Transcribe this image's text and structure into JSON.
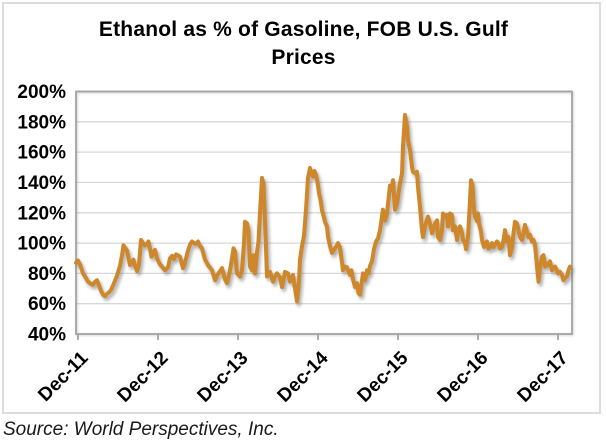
{
  "colors": {
    "line": "#CE872B",
    "grid": "#D8D8D8",
    "axis": "#A3A3A3",
    "text": "#000000",
    "card_border": "#DCDCDC",
    "background": "#FFFFFF"
  },
  "footer": {
    "source": "Source: World Perspectives, Inc."
  },
  "chart_data": {
    "type": "line",
    "title": "Ethanol as % of Gasoline, FOB U.S. Gulf Prices",
    "title_lines": [
      "Ethanol as % of Gasoline, FOB U.S. Gulf",
      "Prices"
    ],
    "xlabel": "",
    "ylabel": "",
    "y_unit": "%",
    "ylim": [
      40,
      200
    ],
    "y_step": 20,
    "y_tick_labels": [
      "200%",
      "180%",
      "160%",
      "140%",
      "120%",
      "100%",
      "80%",
      "60%",
      "40%"
    ],
    "x_tick_labels": [
      "Dec-11",
      "Dec-12",
      "Dec-13",
      "Dec-14",
      "Dec-15",
      "Dec-16",
      "Dec-17"
    ],
    "x_unit": "years since Dec-2011",
    "x_range": [
      -0.025,
      6.15
    ],
    "grid": "horizontal",
    "legend": "none",
    "series": [
      {
        "name": "Ethanol as % of Gasoline",
        "color": "#CE872B",
        "points": [
          [
            -0.025,
            87
          ],
          [
            0,
            88.5
          ],
          [
            0.025,
            86
          ],
          [
            0.063,
            80
          ],
          [
            0.088,
            78
          ],
          [
            0.125,
            74.5
          ],
          [
            0.15,
            73.5
          ],
          [
            0.188,
            72.5
          ],
          [
            0.213,
            74.5
          ],
          [
            0.238,
            75.5
          ],
          [
            0.263,
            72
          ],
          [
            0.288,
            68.5
          ],
          [
            0.313,
            66
          ],
          [
            0.338,
            65
          ],
          [
            0.363,
            66.5
          ],
          [
            0.388,
            67.5
          ],
          [
            0.413,
            69
          ],
          [
            0.45,
            73.5
          ],
          [
            0.488,
            78.5
          ],
          [
            0.525,
            85
          ],
          [
            0.55,
            92
          ],
          [
            0.569,
            98.5
          ],
          [
            0.588,
            97
          ],
          [
            0.613,
            95
          ],
          [
            0.638,
            88.5
          ],
          [
            0.65,
            85.5
          ],
          [
            0.675,
            87.5
          ],
          [
            0.694,
            89
          ],
          [
            0.713,
            85
          ],
          [
            0.738,
            81.5
          ],
          [
            0.763,
            86
          ],
          [
            0.788,
            102
          ],
          [
            0.813,
            100
          ],
          [
            0.838,
            98.5
          ],
          [
            0.863,
            99.5
          ],
          [
            0.881,
            101
          ],
          [
            0.9,
            96
          ],
          [
            0.919,
            91
          ],
          [
            0.938,
            93.5
          ],
          [
            0.963,
            95.5
          ],
          [
            0.988,
            90
          ],
          [
            1.0,
            88.5
          ],
          [
            1.025,
            86
          ],
          [
            1.05,
            84.5
          ],
          [
            1.088,
            82
          ],
          [
            1.125,
            84
          ],
          [
            1.15,
            90
          ],
          [
            1.175,
            91.5
          ],
          [
            1.2,
            89.5
          ],
          [
            1.225,
            92.5
          ],
          [
            1.25,
            92
          ],
          [
            1.275,
            91
          ],
          [
            1.313,
            83.5
          ],
          [
            1.338,
            87
          ],
          [
            1.375,
            95
          ],
          [
            1.4,
            99
          ],
          [
            1.425,
            101
          ],
          [
            1.45,
            100
          ],
          [
            1.475,
            99.5
          ],
          [
            1.5,
            101
          ],
          [
            1.525,
            98
          ],
          [
            1.55,
            96.5
          ],
          [
            1.588,
            89
          ],
          [
            1.625,
            85.5
          ],
          [
            1.675,
            82
          ],
          [
            1.713,
            75.5
          ],
          [
            1.738,
            78.5
          ],
          [
            1.763,
            80.5
          ],
          [
            1.775,
            81.5
          ],
          [
            1.8,
            83.5
          ],
          [
            1.838,
            76
          ],
          [
            1.863,
            73.5
          ],
          [
            1.888,
            79
          ],
          [
            1.9,
            82
          ],
          [
            1.925,
            90
          ],
          [
            1.944,
            96.5
          ],
          [
            1.963,
            94.5
          ],
          [
            1.988,
            80
          ],
          [
            2.025,
            78
          ],
          [
            2.05,
            82
          ],
          [
            2.075,
            100
          ],
          [
            2.088,
            114
          ],
          [
            2.113,
            113
          ],
          [
            2.131,
            107.5
          ],
          [
            2.15,
            84.5
          ],
          [
            2.175,
            82
          ],
          [
            2.194,
            92
          ],
          [
            2.213,
            80
          ],
          [
            2.238,
            94
          ],
          [
            2.256,
            101
          ],
          [
            2.275,
            120
          ],
          [
            2.3,
            143
          ],
          [
            2.319,
            139
          ],
          [
            2.338,
            115
          ],
          [
            2.363,
            78
          ],
          [
            2.4,
            81
          ],
          [
            2.438,
            74.5
          ],
          [
            2.463,
            78
          ],
          [
            2.488,
            80
          ],
          [
            2.525,
            77.5
          ],
          [
            2.55,
            71
          ],
          [
            2.588,
            81
          ],
          [
            2.625,
            80
          ],
          [
            2.65,
            74.5
          ],
          [
            2.688,
            79
          ],
          [
            2.713,
            70
          ],
          [
            2.738,
            61.5
          ],
          [
            2.763,
            75
          ],
          [
            2.775,
            89
          ],
          [
            2.8,
            98
          ],
          [
            2.825,
            105
          ],
          [
            2.85,
            122
          ],
          [
            2.875,
            143
          ],
          [
            2.9,
            149.5
          ],
          [
            2.919,
            146
          ],
          [
            2.938,
            144
          ],
          [
            2.956,
            147.5
          ],
          [
            2.975,
            145
          ],
          [
            2.994,
            140
          ],
          [
            3.013,
            133
          ],
          [
            3.031,
            128.5
          ],
          [
            3.05,
            121.5
          ],
          [
            3.063,
            119.5
          ],
          [
            3.088,
            114
          ],
          [
            3.113,
            111
          ],
          [
            3.125,
            104
          ],
          [
            3.15,
            98
          ],
          [
            3.175,
            93.5
          ],
          [
            3.2,
            95.5
          ],
          [
            3.225,
            97.5
          ],
          [
            3.25,
            100
          ],
          [
            3.275,
            97
          ],
          [
            3.313,
            82
          ],
          [
            3.338,
            84.5
          ],
          [
            3.363,
            84
          ],
          [
            3.4,
            79
          ],
          [
            3.419,
            82
          ],
          [
            3.438,
            76
          ],
          [
            3.463,
            71
          ],
          [
            3.488,
            73.5
          ],
          [
            3.506,
            67
          ],
          [
            3.525,
            66
          ],
          [
            3.544,
            73.5
          ],
          [
            3.563,
            80
          ],
          [
            3.588,
            75.5
          ],
          [
            3.613,
            82
          ],
          [
            3.631,
            80
          ],
          [
            3.65,
            85
          ],
          [
            3.675,
            88
          ],
          [
            3.7,
            96
          ],
          [
            3.725,
            101
          ],
          [
            3.75,
            103
          ],
          [
            3.775,
            108.5
          ],
          [
            3.8,
            117.5
          ],
          [
            3.813,
            122
          ],
          [
            3.838,
            115
          ],
          [
            3.863,
            120
          ],
          [
            3.875,
            126
          ],
          [
            3.9,
            138
          ],
          [
            3.925,
            135
          ],
          [
            3.938,
            141.5
          ],
          [
            3.963,
            122
          ],
          [
            3.988,
            126
          ],
          [
            4.0,
            130.5
          ],
          [
            4.025,
            139.5
          ],
          [
            4.05,
            146
          ],
          [
            4.063,
            164
          ],
          [
            4.088,
            184.5
          ],
          [
            4.113,
            177
          ],
          [
            4.125,
            168
          ],
          [
            4.15,
            161.5
          ],
          [
            4.175,
            150
          ],
          [
            4.188,
            147
          ],
          [
            4.213,
            146
          ],
          [
            4.238,
            147
          ],
          [
            4.25,
            137
          ],
          [
            4.275,
            124
          ],
          [
            4.3,
            108.5
          ],
          [
            4.313,
            104
          ],
          [
            4.338,
            111
          ],
          [
            4.363,
            115.5
          ],
          [
            4.375,
            117.5
          ],
          [
            4.4,
            113
          ],
          [
            4.425,
            106.5
          ],
          [
            4.438,
            108.5
          ],
          [
            4.463,
            113
          ],
          [
            4.488,
            115
          ],
          [
            4.5,
            104
          ],
          [
            4.525,
            102
          ],
          [
            4.55,
            108.5
          ],
          [
            4.563,
            119.5
          ],
          [
            4.588,
            117.5
          ],
          [
            4.613,
            118.5
          ],
          [
            4.625,
            111
          ],
          [
            4.65,
            119.5
          ],
          [
            4.675,
            118.5
          ],
          [
            4.688,
            108.5
          ],
          [
            4.713,
            111
          ],
          [
            4.738,
            102
          ],
          [
            4.75,
            108.5
          ],
          [
            4.775,
            111
          ],
          [
            4.8,
            106.5
          ],
          [
            4.813,
            102
          ],
          [
            4.838,
            100
          ],
          [
            4.85,
            96
          ],
          [
            4.875,
            104
          ],
          [
            4.9,
            128
          ],
          [
            4.913,
            141.5
          ],
          [
            4.931,
            138
          ],
          [
            4.95,
            122
          ],
          [
            4.963,
            117.5
          ],
          [
            4.988,
            114.5
          ],
          [
            5.0,
            119.5
          ],
          [
            5.013,
            113
          ],
          [
            5.038,
            107.5
          ],
          [
            5.05,
            102
          ],
          [
            5.075,
            97.5
          ],
          [
            5.088,
            99
          ],
          [
            5.113,
            101
          ],
          [
            5.131,
            96.5
          ],
          [
            5.15,
            97.5
          ],
          [
            5.175,
            100
          ],
          [
            5.194,
            97.5
          ],
          [
            5.213,
            99
          ],
          [
            5.238,
            101
          ],
          [
            5.256,
            100
          ],
          [
            5.275,
            96.5
          ],
          [
            5.3,
            97.5
          ],
          [
            5.319,
            102
          ],
          [
            5.338,
            108.5
          ],
          [
            5.363,
            101
          ],
          [
            5.381,
            104
          ],
          [
            5.4,
            92
          ],
          [
            5.425,
            97.5
          ],
          [
            5.444,
            106.5
          ],
          [
            5.463,
            114
          ],
          [
            5.488,
            113
          ],
          [
            5.506,
            108.5
          ],
          [
            5.525,
            104
          ],
          [
            5.55,
            102
          ],
          [
            5.569,
            106.5
          ],
          [
            5.588,
            112
          ],
          [
            5.613,
            107.5
          ],
          [
            5.631,
            104
          ],
          [
            5.65,
            105.5
          ],
          [
            5.675,
            101
          ],
          [
            5.694,
            102
          ],
          [
            5.713,
            99
          ],
          [
            5.738,
            84.5
          ],
          [
            5.756,
            74.5
          ],
          [
            5.775,
            84.5
          ],
          [
            5.8,
            91
          ],
          [
            5.819,
            92
          ],
          [
            5.838,
            84.5
          ],
          [
            5.863,
            86.5
          ],
          [
            5.881,
            85.5
          ],
          [
            5.9,
            88
          ],
          [
            5.925,
            82
          ],
          [
            5.944,
            83.5
          ],
          [
            5.963,
            84.5
          ],
          [
            5.988,
            82
          ],
          [
            6.0,
            80
          ],
          [
            6.025,
            81
          ],
          [
            6.05,
            79
          ],
          [
            6.069,
            75.5
          ],
          [
            6.088,
            77
          ],
          [
            6.113,
            78
          ],
          [
            6.131,
            82
          ],
          [
            6.15,
            84.5
          ]
        ]
      }
    ]
  }
}
